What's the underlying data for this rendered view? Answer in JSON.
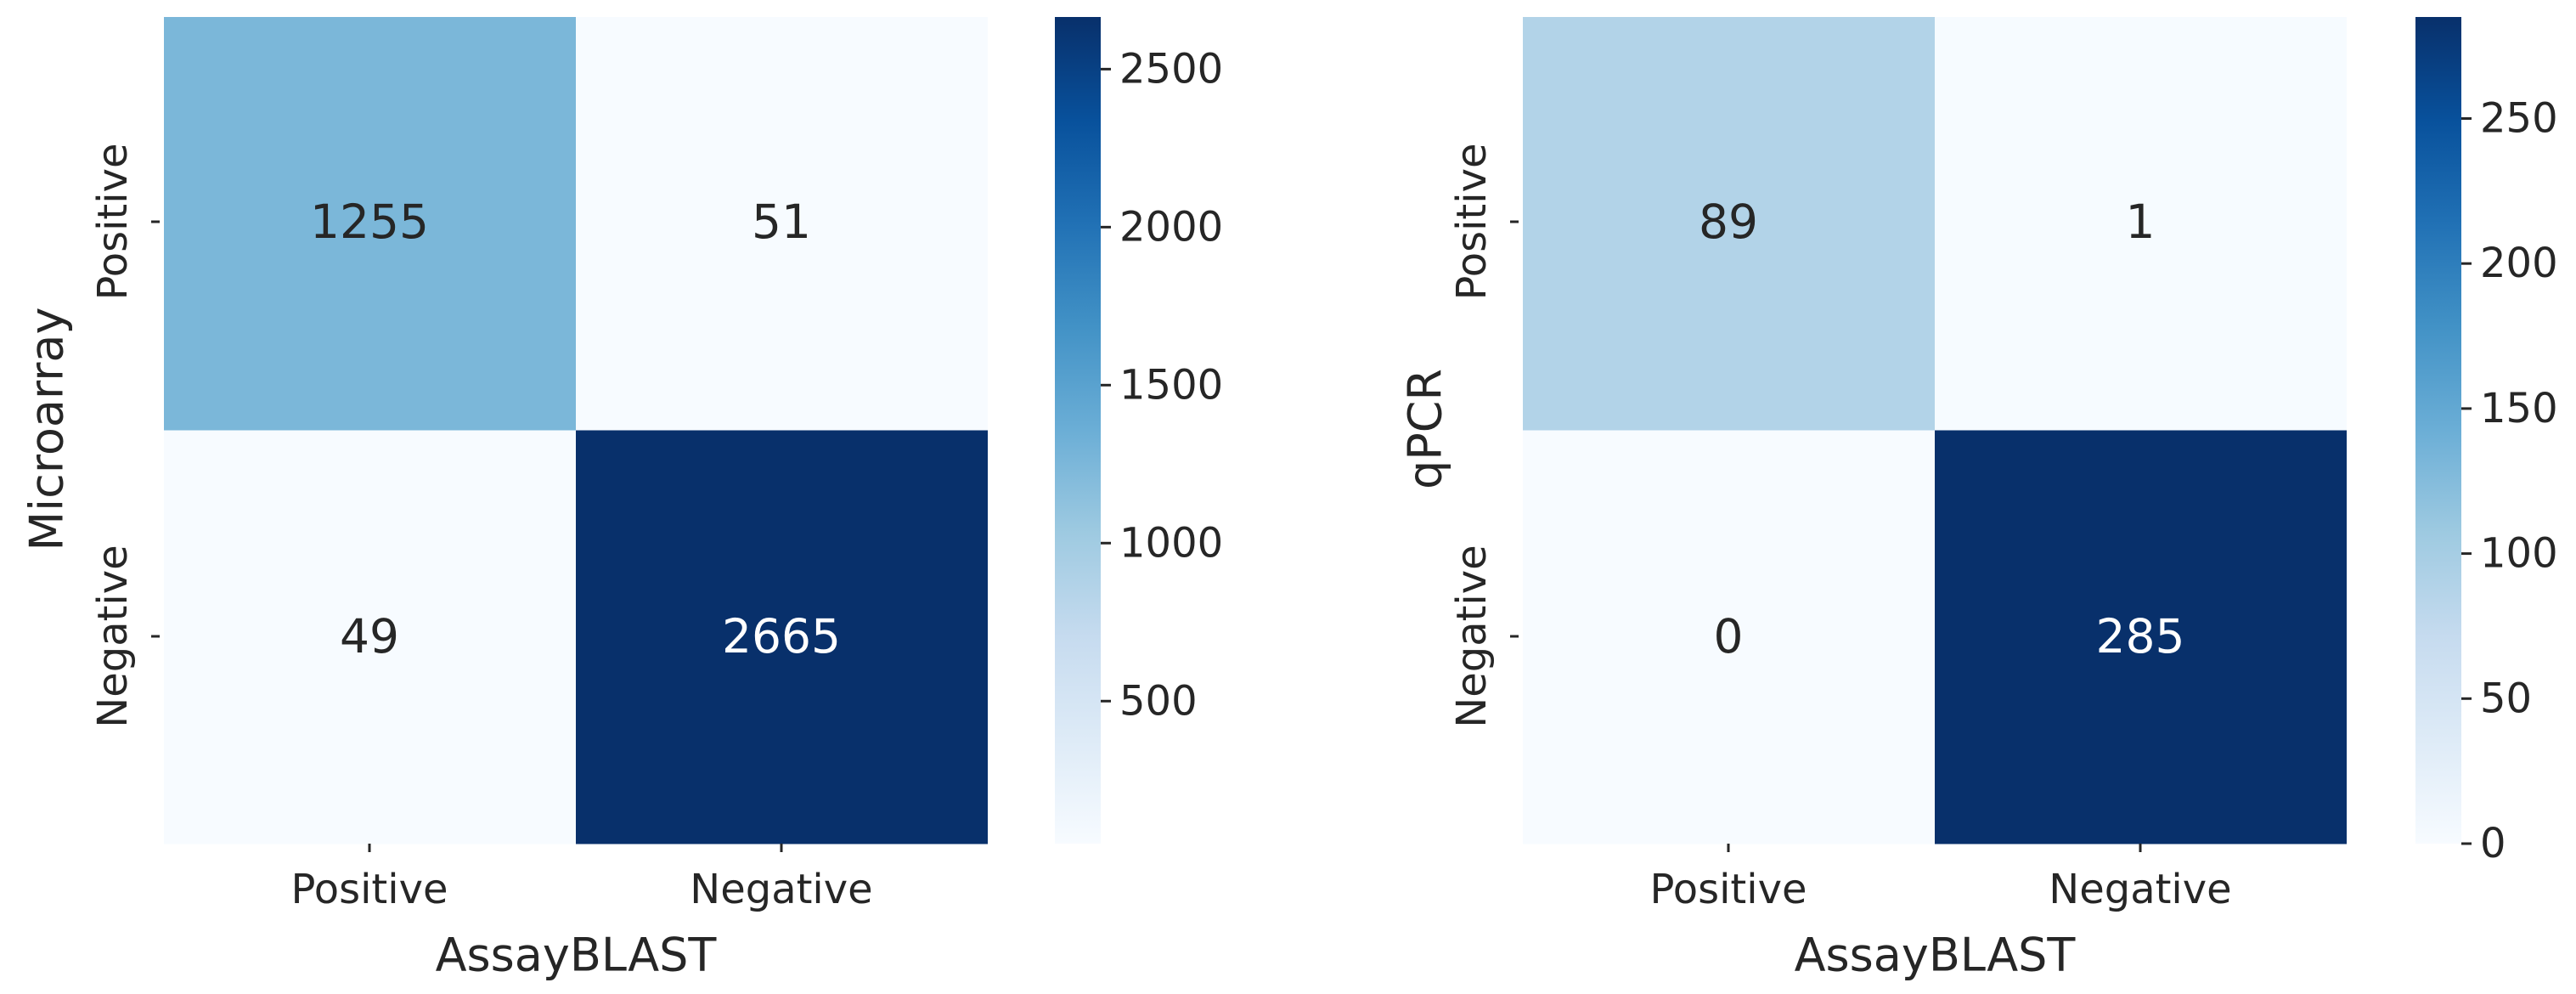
{
  "chart_data": [
    {
      "type": "heatmap",
      "xlabel": "AssayBLAST",
      "ylabel": "Microarray",
      "x_categories": [
        "Positive",
        "Negative"
      ],
      "y_categories": [
        "Positive",
        "Negative"
      ],
      "values": [
        [
          1255,
          51
        ],
        [
          49,
          2665
        ]
      ],
      "cells_text": [
        [
          "1255",
          "51"
        ],
        [
          "49",
          "2665"
        ]
      ],
      "colorbar": {
        "min": 49,
        "max": 2665,
        "ticks": [
          500,
          1000,
          1500,
          2000,
          2500
        ],
        "tick_labels": [
          "500",
          "1000",
          "1500",
          "2000",
          "2500"
        ]
      },
      "colormap": "Blues"
    },
    {
      "type": "heatmap",
      "xlabel": "AssayBLAST",
      "ylabel": "qPCR",
      "x_categories": [
        "Positive",
        "Negative"
      ],
      "y_categories": [
        "Positive",
        "Negative"
      ],
      "values": [
        [
          89,
          1
        ],
        [
          0,
          285
        ]
      ],
      "cells_text": [
        [
          "89",
          "1"
        ],
        [
          "0",
          "285"
        ]
      ],
      "colorbar": {
        "min": 0,
        "max": 285,
        "ticks": [
          0,
          50,
          100,
          150,
          200,
          250
        ],
        "tick_labels": [
          "0",
          "50",
          "100",
          "150",
          "200",
          "250"
        ]
      },
      "colormap": "Blues"
    }
  ]
}
